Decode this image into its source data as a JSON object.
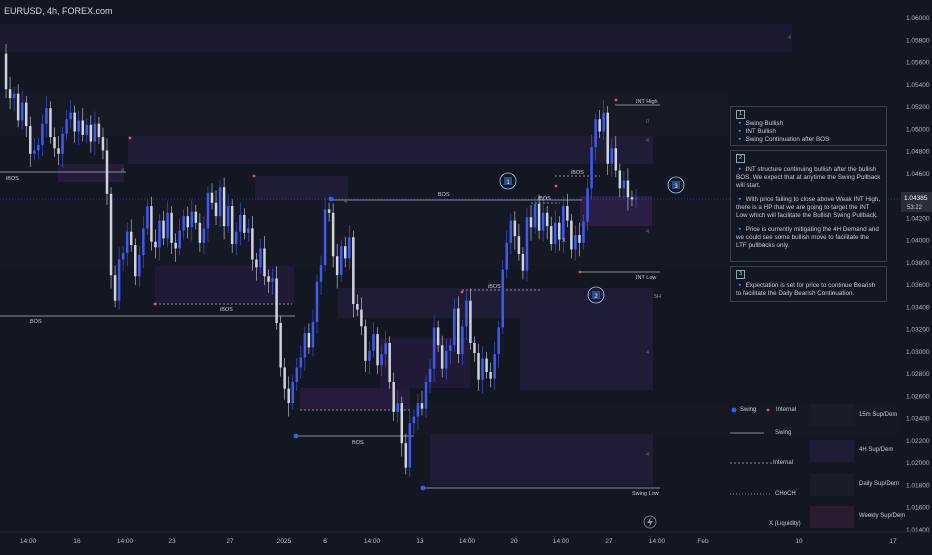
{
  "symbol": "EURUSD, 4h, FOREX.com",
  "chart_data": {
    "type": "candlestick",
    "y_ticks": [
      "1.06000",
      "1.05800",
      "1.05600",
      "1.05400",
      "1.05200",
      "1.05000",
      "1.04800",
      "1.04600",
      "1.04400",
      "1.04200",
      "1.04000",
      "1.03800",
      "1.03600",
      "1.03400",
      "1.03200",
      "1.03000",
      "1.02800",
      "1.02600",
      "1.02400",
      "1.02200",
      "1.02000",
      "1.01800",
      "1.01600",
      "1.01400"
    ],
    "x_ticks": [
      "14:00",
      "16",
      "14:00",
      "23",
      "27",
      "2025",
      "6",
      "14:00",
      "13",
      "14:00",
      "20",
      "14:00",
      "27",
      "14:00",
      "Feb",
      "10",
      "17"
    ],
    "current_price": "1.04385",
    "countdown": "53:22",
    "series": [
      {
        "values": [
          1.0568,
          1.0536,
          1.0528,
          1.0532,
          1.0508,
          1.0524,
          1.0503,
          1.0478,
          1.0481,
          1.0486,
          1.0505,
          1.0519,
          1.0493,
          1.0483,
          1.0478,
          1.0496,
          1.0509,
          1.0515,
          1.0498,
          1.0508,
          1.0495,
          1.0504,
          1.0489,
          1.0505,
          1.0493,
          1.0481,
          1.0442,
          1.0369,
          1.0346,
          1.0383,
          1.0389,
          1.0408,
          1.0396,
          1.0368,
          1.0387,
          1.0411,
          1.0431,
          1.0399,
          1.0394,
          1.0418,
          1.0402,
          1.0425,
          1.0398,
          1.0393,
          1.0409,
          1.0422,
          1.0412,
          1.0426,
          1.0416,
          1.0398,
          1.0411,
          1.0443,
          1.0434,
          1.0422,
          1.0448,
          1.0413,
          1.0431,
          1.0397,
          1.0408,
          1.0423,
          1.0407,
          1.0411,
          1.0383,
          1.0376,
          1.0393,
          1.0368,
          1.0363,
          1.0366,
          1.0326,
          1.0286,
          1.0267,
          1.0254,
          1.0273,
          1.0286,
          1.0295,
          1.0317,
          1.0304,
          1.0327,
          1.0363,
          1.0378,
          1.0428,
          1.0425,
          1.0386,
          1.0369,
          1.0395,
          1.0384,
          1.0403,
          1.0343,
          1.0338,
          1.0323,
          1.0292,
          1.0301,
          1.0316,
          1.0288,
          1.0298,
          1.0308,
          1.0273,
          1.0246,
          1.0254,
          1.0218,
          1.0196,
          1.0236,
          1.0242,
          1.0254,
          1.0249,
          1.0273,
          1.0285,
          1.0322,
          1.0306,
          1.0285,
          1.0301,
          1.0306,
          1.0339,
          1.0298,
          1.0323,
          1.0346,
          1.0308,
          1.0299,
          1.0275,
          1.0294,
          1.0282,
          1.0276,
          1.0298,
          1.0322,
          1.0374,
          1.0398,
          1.0418,
          1.0404,
          1.0388,
          1.0373,
          1.0421,
          1.0412,
          1.0433,
          1.0409,
          1.0425,
          1.0413,
          1.0397,
          1.0416,
          1.0401,
          1.0431,
          1.0418,
          1.0392,
          1.0405,
          1.0398,
          1.0417,
          1.0447,
          1.0484,
          1.0509,
          1.0498,
          1.0515,
          1.0469,
          1.0483,
          1.0463,
          1.0447,
          1.0454,
          1.0439,
          1.0437,
          1.0438
        ]
      }
    ],
    "annotations": {
      "ibos_1": "iBOS",
      "bos_1": "BOS",
      "ibos_2": "iBOS",
      "bos_2": "BOS",
      "ibos_3": "iBOS",
      "bos_3": "BOS",
      "ibos_4": "iBOS",
      "ibos_5": "iBOS",
      "int_high": "INT High",
      "int_low": "INT Low",
      "swing_low": "Swing Low",
      "x_mark": "X",
      "five_h": "5H",
      "circle_1": "1",
      "circle_2": "2",
      "circle_3": "3",
      "zone_4": "4",
      "zone_0": "0"
    }
  },
  "notes": {
    "section1": {
      "num": "1",
      "lines": [
        "🔹 Swing Bullish",
        "🔹 INT Bullish",
        "🔹 Swing Continuation after BOS"
      ]
    },
    "section2": {
      "num": "2",
      "p1": "🔹 INT structure continuing bullish after the bullish BOS. We expect that at anytime the Swing Pullback will start.",
      "p2": "🔹 With price failing to close above Weak INT High, there is a HP that we are going to target the INT Low which will facilitate the Bullish Swing Pullback.",
      "p3": "🔹 Price is currently mitigating the 4H Demand and we could see some bullish move to facilitate the LTF pullbacks only."
    },
    "section3": {
      "num": "3",
      "p1": "🔹 Expectation is set for price to continue Bearish to facilitate the Daily Bearish Continuation."
    }
  },
  "legend": {
    "swing": "Swing",
    "internal": "Internal",
    "swing_line": "Swing",
    "internal_line": "Internal",
    "choch": "CHoCH",
    "liquidity": "X (Liquidity)",
    "sd_15m": "15m Sup/Dem",
    "sd_4h": "4H Sup/Dem",
    "sd_daily": "Daily Sup/Dem",
    "sd_weekly": "Weekly Sup/Dem"
  },
  "colors": {
    "bg": "#131722",
    "bull": "#3d5af1",
    "bear": "#cfd3dc",
    "accent": "#2962ff",
    "zone": "#1e1b33",
    "demand": "#211a36",
    "marker": "#e8505b"
  }
}
